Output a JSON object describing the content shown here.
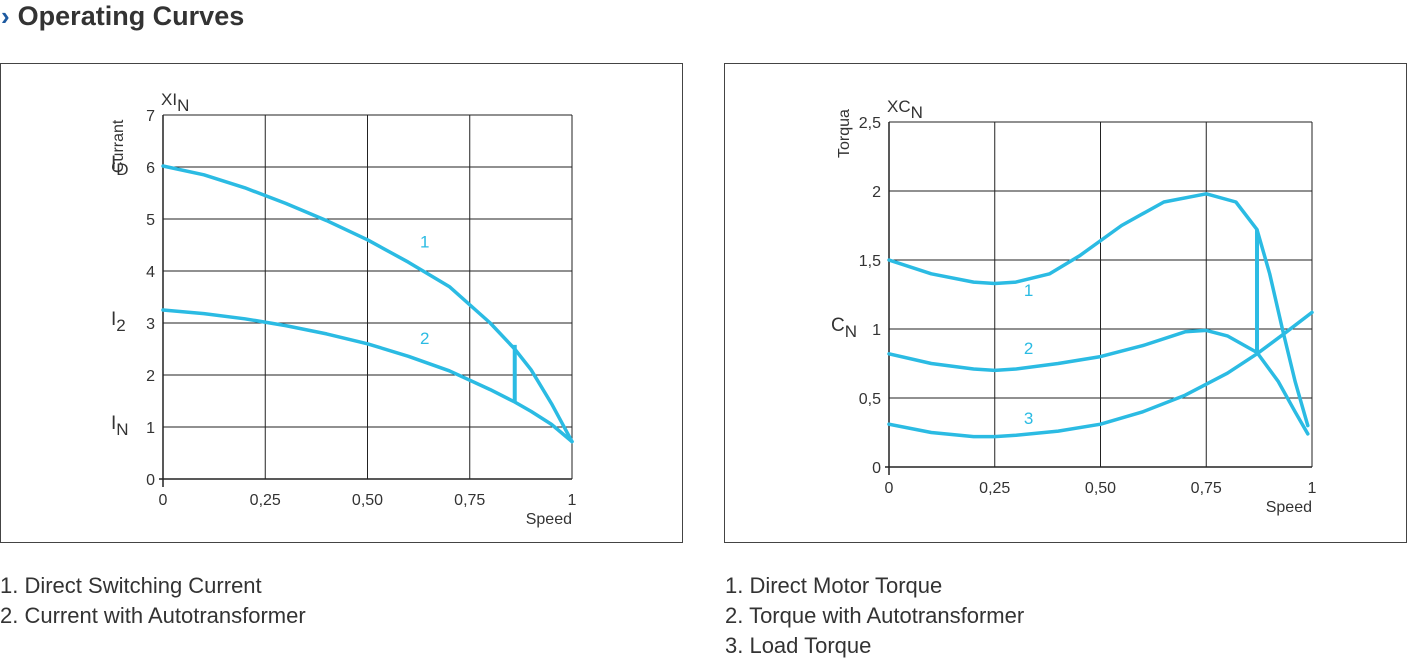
{
  "header": {
    "chevron": "›",
    "title": "Operating Curves"
  },
  "colors": {
    "curve": "#2bbbe3",
    "grid": "#222222",
    "text": "#333333",
    "chevron": "#1e5aa0"
  },
  "chart_data": [
    {
      "type": "line",
      "xlabel": "Speed",
      "ylabel": "Currant",
      "unit_main": "XI",
      "unit_sub": "N",
      "xlim": [
        0,
        1
      ],
      "ylim": [
        0,
        7
      ],
      "x_ticks": [
        0,
        0.25,
        0.5,
        0.75,
        1
      ],
      "x_tick_labels": [
        "0",
        "0,25",
        "0,50",
        "0,75",
        "1"
      ],
      "y_ticks": [
        0,
        1,
        2,
        3,
        4,
        5,
        6,
        7
      ],
      "y_tick_labels": [
        "0",
        "1",
        "2",
        "3",
        "4",
        "5",
        "6",
        "7"
      ],
      "axis_markers": [
        {
          "main": "I",
          "sub": "D",
          "y": 6
        },
        {
          "main": "I",
          "sub": "2",
          "y": 3
        },
        {
          "main": "I",
          "sub": "N",
          "y": 1
        }
      ],
      "series": [
        {
          "label": "1",
          "label_at": [
            0.64,
            4.45
          ],
          "points": [
            [
              0,
              6.02
            ],
            [
              0.1,
              5.85
            ],
            [
              0.2,
              5.6
            ],
            [
              0.3,
              5.3
            ],
            [
              0.4,
              4.97
            ],
            [
              0.5,
              4.6
            ],
            [
              0.6,
              4.17
            ],
            [
              0.7,
              3.7
            ],
            [
              0.8,
              3.0
            ],
            [
              0.86,
              2.5
            ],
            [
              0.9,
              2.1
            ],
            [
              0.95,
              1.45
            ],
            [
              1,
              0.72
            ]
          ]
        },
        {
          "label": "2",
          "label_at": [
            0.64,
            2.6
          ],
          "points": [
            [
              0,
              3.25
            ],
            [
              0.1,
              3.18
            ],
            [
              0.2,
              3.08
            ],
            [
              0.3,
              2.95
            ],
            [
              0.4,
              2.79
            ],
            [
              0.5,
              2.6
            ],
            [
              0.6,
              2.36
            ],
            [
              0.7,
              2.08
            ],
            [
              0.8,
              1.72
            ],
            [
              0.86,
              1.48
            ],
            [
              0.9,
              1.3
            ],
            [
              0.95,
              1.05
            ],
            [
              1,
              0.72
            ]
          ]
        }
      ],
      "switch_line": {
        "x": 0.86,
        "y_from": 1.48,
        "y_to": 2.58
      }
    },
    {
      "type": "line",
      "xlabel": "Speed",
      "ylabel": "Torqua",
      "unit_main": "XC",
      "unit_sub": "N",
      "xlim": [
        0,
        1
      ],
      "ylim": [
        0,
        2.5
      ],
      "x_ticks": [
        0,
        0.25,
        0.5,
        0.75,
        1
      ],
      "x_tick_labels": [
        "0",
        "0,25",
        "0,50",
        "0,75",
        "1"
      ],
      "y_ticks": [
        0,
        0.5,
        1,
        1.5,
        2,
        2.5
      ],
      "y_tick_labels": [
        "0",
        "0,5",
        "1",
        "1,5",
        "2",
        "2,5"
      ],
      "axis_markers": [
        {
          "main": "C",
          "sub": "N",
          "y": 1
        }
      ],
      "series": [
        {
          "label": "1",
          "label_at": [
            0.33,
            1.24
          ],
          "points": [
            [
              0,
              1.5
            ],
            [
              0.1,
              1.4
            ],
            [
              0.2,
              1.34
            ],
            [
              0.25,
              1.33
            ],
            [
              0.3,
              1.34
            ],
            [
              0.38,
              1.4
            ],
            [
              0.45,
              1.53
            ],
            [
              0.55,
              1.75
            ],
            [
              0.65,
              1.92
            ],
            [
              0.75,
              1.98
            ],
            [
              0.82,
              1.92
            ],
            [
              0.87,
              1.72
            ],
            [
              0.9,
              1.4
            ],
            [
              0.93,
              1.0
            ],
            [
              0.96,
              0.62
            ],
            [
              0.99,
              0.3
            ]
          ]
        },
        {
          "label": "2",
          "label_at": [
            0.33,
            0.82
          ],
          "points": [
            [
              0,
              0.82
            ],
            [
              0.1,
              0.75
            ],
            [
              0.2,
              0.71
            ],
            [
              0.25,
              0.7
            ],
            [
              0.3,
              0.71
            ],
            [
              0.4,
              0.75
            ],
            [
              0.5,
              0.8
            ],
            [
              0.6,
              0.88
            ],
            [
              0.7,
              0.98
            ],
            [
              0.75,
              0.99
            ],
            [
              0.8,
              0.95
            ],
            [
              0.87,
              0.83
            ],
            [
              0.92,
              0.62
            ],
            [
              0.96,
              0.4
            ],
            [
              0.99,
              0.24
            ]
          ]
        },
        {
          "label": "3",
          "label_at": [
            0.33,
            0.31
          ],
          "points": [
            [
              0,
              0.31
            ],
            [
              0.1,
              0.25
            ],
            [
              0.2,
              0.22
            ],
            [
              0.25,
              0.22
            ],
            [
              0.3,
              0.23
            ],
            [
              0.4,
              0.26
            ],
            [
              0.5,
              0.31
            ],
            [
              0.6,
              0.4
            ],
            [
              0.7,
              0.52
            ],
            [
              0.8,
              0.68
            ],
            [
              0.87,
              0.82
            ],
            [
              0.94,
              0.98
            ],
            [
              1,
              1.12
            ]
          ]
        }
      ],
      "switch_line": {
        "x": 0.87,
        "y_from": 0.83,
        "y_to": 1.72
      }
    }
  ],
  "legend_left": [
    "1. Direct Switching Current",
    "2. Current with Autotransformer"
  ],
  "legend_right": [
    "1. Direct Motor Torque",
    "2. Torque with Autotransformer",
    "3. Load Torque"
  ]
}
